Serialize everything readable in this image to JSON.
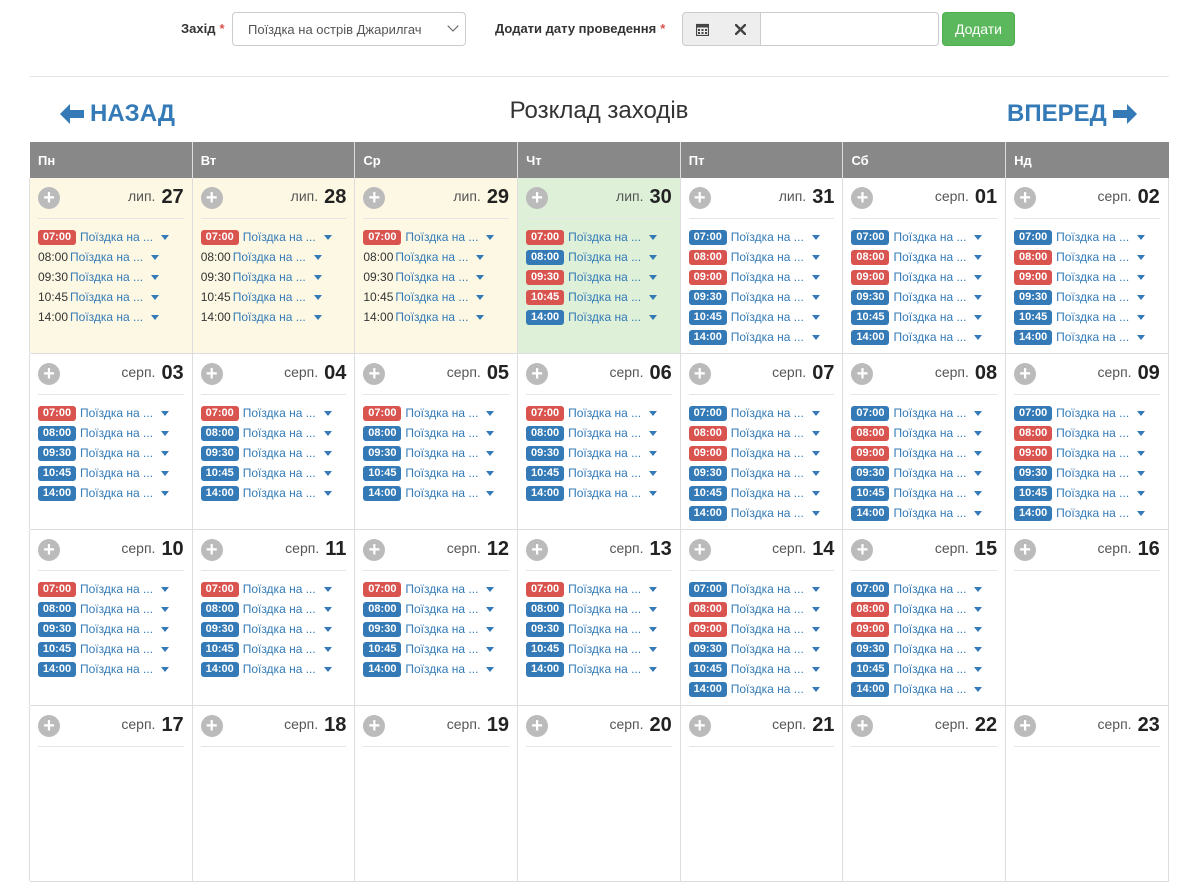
{
  "form": {
    "event_label": "Захід",
    "event_required": "*",
    "event_value": "Поїздка на острів Джарилгач",
    "date_label": "Додати дату проведення",
    "date_required": "*",
    "date_value": "",
    "add_label": "Додати"
  },
  "nav": {
    "back_label": "НАЗАД",
    "forward_label": "ВПЕРЕД",
    "back_icon": "arrow-left-icon",
    "forward_icon": "arrow-right-icon"
  },
  "schedule_title": "Розклад заходів",
  "colors": {
    "accent": "#337ab7",
    "past_bg": "#fcf8e3",
    "today_bg": "#dff0d8",
    "header_bg": "#888888",
    "red_badge": "#d9534f",
    "green_button": "#5cb85c"
  },
  "weekdays": [
    "Пн",
    "Вт",
    "Ср",
    "Чт",
    "Пт",
    "Сб",
    "Нд"
  ],
  "event_name": "Поїздка на ...",
  "weeks": [
    [
      {
        "month": "лип.",
        "day": "27",
        "state": "past",
        "events": [
          {
            "time": "07:00",
            "style": "red"
          },
          {
            "time": "08:00",
            "style": "plain"
          },
          {
            "time": "09:30",
            "style": "plain"
          },
          {
            "time": "10:45",
            "style": "plain"
          },
          {
            "time": "14:00",
            "style": "plain"
          }
        ]
      },
      {
        "month": "лип.",
        "day": "28",
        "state": "past",
        "events": [
          {
            "time": "07:00",
            "style": "red"
          },
          {
            "time": "08:00",
            "style": "plain"
          },
          {
            "time": "09:30",
            "style": "plain"
          },
          {
            "time": "10:45",
            "style": "plain"
          },
          {
            "time": "14:00",
            "style": "plain"
          }
        ]
      },
      {
        "month": "лип.",
        "day": "29",
        "state": "past",
        "events": [
          {
            "time": "07:00",
            "style": "red"
          },
          {
            "time": "08:00",
            "style": "plain"
          },
          {
            "time": "09:30",
            "style": "plain"
          },
          {
            "time": "10:45",
            "style": "plain"
          },
          {
            "time": "14:00",
            "style": "plain"
          }
        ]
      },
      {
        "month": "лип.",
        "day": "30",
        "state": "today",
        "events": [
          {
            "time": "07:00",
            "style": "red"
          },
          {
            "time": "08:00",
            "style": "blue"
          },
          {
            "time": "09:30",
            "style": "red"
          },
          {
            "time": "10:45",
            "style": "red"
          },
          {
            "time": "14:00",
            "style": "blue"
          }
        ]
      },
      {
        "month": "лип.",
        "day": "31",
        "state": "future",
        "events": [
          {
            "time": "07:00",
            "style": "blue"
          },
          {
            "time": "08:00",
            "style": "red"
          },
          {
            "time": "09:00",
            "style": "red"
          },
          {
            "time": "09:30",
            "style": "blue"
          },
          {
            "time": "10:45",
            "style": "blue"
          },
          {
            "time": "14:00",
            "style": "blue"
          }
        ]
      },
      {
        "month": "серп.",
        "day": "01",
        "state": "future",
        "events": [
          {
            "time": "07:00",
            "style": "blue"
          },
          {
            "time": "08:00",
            "style": "red"
          },
          {
            "time": "09:00",
            "style": "red"
          },
          {
            "time": "09:30",
            "style": "blue"
          },
          {
            "time": "10:45",
            "style": "blue"
          },
          {
            "time": "14:00",
            "style": "blue"
          }
        ]
      },
      {
        "month": "серп.",
        "day": "02",
        "state": "future",
        "events": [
          {
            "time": "07:00",
            "style": "blue"
          },
          {
            "time": "08:00",
            "style": "red"
          },
          {
            "time": "09:00",
            "style": "red"
          },
          {
            "time": "09:30",
            "style": "blue"
          },
          {
            "time": "10:45",
            "style": "blue"
          },
          {
            "time": "14:00",
            "style": "blue"
          }
        ]
      }
    ],
    [
      {
        "month": "серп.",
        "day": "03",
        "state": "future",
        "events": [
          {
            "time": "07:00",
            "style": "red"
          },
          {
            "time": "08:00",
            "style": "blue"
          },
          {
            "time": "09:30",
            "style": "blue"
          },
          {
            "time": "10:45",
            "style": "blue"
          },
          {
            "time": "14:00",
            "style": "blue"
          }
        ]
      },
      {
        "month": "серп.",
        "day": "04",
        "state": "future",
        "events": [
          {
            "time": "07:00",
            "style": "red"
          },
          {
            "time": "08:00",
            "style": "blue"
          },
          {
            "time": "09:30",
            "style": "blue"
          },
          {
            "time": "10:45",
            "style": "blue"
          },
          {
            "time": "14:00",
            "style": "blue"
          }
        ]
      },
      {
        "month": "серп.",
        "day": "05",
        "state": "future",
        "events": [
          {
            "time": "07:00",
            "style": "red"
          },
          {
            "time": "08:00",
            "style": "blue"
          },
          {
            "time": "09:30",
            "style": "blue"
          },
          {
            "time": "10:45",
            "style": "blue"
          },
          {
            "time": "14:00",
            "style": "blue"
          }
        ]
      },
      {
        "month": "серп.",
        "day": "06",
        "state": "future",
        "events": [
          {
            "time": "07:00",
            "style": "red"
          },
          {
            "time": "08:00",
            "style": "blue"
          },
          {
            "time": "09:30",
            "style": "blue"
          },
          {
            "time": "10:45",
            "style": "blue"
          },
          {
            "time": "14:00",
            "style": "blue"
          }
        ]
      },
      {
        "month": "серп.",
        "day": "07",
        "state": "future",
        "events": [
          {
            "time": "07:00",
            "style": "blue"
          },
          {
            "time": "08:00",
            "style": "red"
          },
          {
            "time": "09:00",
            "style": "red"
          },
          {
            "time": "09:30",
            "style": "blue"
          },
          {
            "time": "10:45",
            "style": "blue"
          },
          {
            "time": "14:00",
            "style": "blue"
          }
        ]
      },
      {
        "month": "серп.",
        "day": "08",
        "state": "future",
        "events": [
          {
            "time": "07:00",
            "style": "blue"
          },
          {
            "time": "08:00",
            "style": "red"
          },
          {
            "time": "09:00",
            "style": "red"
          },
          {
            "time": "09:30",
            "style": "blue"
          },
          {
            "time": "10:45",
            "style": "blue"
          },
          {
            "time": "14:00",
            "style": "blue"
          }
        ]
      },
      {
        "month": "серп.",
        "day": "09",
        "state": "future",
        "events": [
          {
            "time": "07:00",
            "style": "blue"
          },
          {
            "time": "08:00",
            "style": "red"
          },
          {
            "time": "09:00",
            "style": "red"
          },
          {
            "time": "09:30",
            "style": "blue"
          },
          {
            "time": "10:45",
            "style": "blue"
          },
          {
            "time": "14:00",
            "style": "blue"
          }
        ]
      }
    ],
    [
      {
        "month": "серп.",
        "day": "10",
        "state": "future",
        "events": [
          {
            "time": "07:00",
            "style": "red"
          },
          {
            "time": "08:00",
            "style": "blue"
          },
          {
            "time": "09:30",
            "style": "blue"
          },
          {
            "time": "10:45",
            "style": "blue"
          },
          {
            "time": "14:00",
            "style": "blue"
          }
        ]
      },
      {
        "month": "серп.",
        "day": "11",
        "state": "future",
        "events": [
          {
            "time": "07:00",
            "style": "red"
          },
          {
            "time": "08:00",
            "style": "blue"
          },
          {
            "time": "09:30",
            "style": "blue"
          },
          {
            "time": "10:45",
            "style": "blue"
          },
          {
            "time": "14:00",
            "style": "blue"
          }
        ]
      },
      {
        "month": "серп.",
        "day": "12",
        "state": "future",
        "events": [
          {
            "time": "07:00",
            "style": "red"
          },
          {
            "time": "08:00",
            "style": "blue"
          },
          {
            "time": "09:30",
            "style": "blue"
          },
          {
            "time": "10:45",
            "style": "blue"
          },
          {
            "time": "14:00",
            "style": "blue"
          }
        ]
      },
      {
        "month": "серп.",
        "day": "13",
        "state": "future",
        "events": [
          {
            "time": "07:00",
            "style": "red"
          },
          {
            "time": "08:00",
            "style": "blue"
          },
          {
            "time": "09:30",
            "style": "blue"
          },
          {
            "time": "10:45",
            "style": "blue"
          },
          {
            "time": "14:00",
            "style": "blue"
          }
        ]
      },
      {
        "month": "серп.",
        "day": "14",
        "state": "future",
        "events": [
          {
            "time": "07:00",
            "style": "blue"
          },
          {
            "time": "08:00",
            "style": "red"
          },
          {
            "time": "09:00",
            "style": "red"
          },
          {
            "time": "09:30",
            "style": "blue"
          },
          {
            "time": "10:45",
            "style": "blue"
          },
          {
            "time": "14:00",
            "style": "blue"
          }
        ]
      },
      {
        "month": "серп.",
        "day": "15",
        "state": "future",
        "events": [
          {
            "time": "07:00",
            "style": "blue"
          },
          {
            "time": "08:00",
            "style": "red"
          },
          {
            "time": "09:00",
            "style": "red"
          },
          {
            "time": "09:30",
            "style": "blue"
          },
          {
            "time": "10:45",
            "style": "blue"
          },
          {
            "time": "14:00",
            "style": "blue"
          }
        ]
      },
      {
        "month": "серп.",
        "day": "16",
        "state": "future",
        "events": []
      }
    ],
    [
      {
        "month": "серп.",
        "day": "17",
        "state": "future",
        "events": []
      },
      {
        "month": "серп.",
        "day": "18",
        "state": "future",
        "events": []
      },
      {
        "month": "серп.",
        "day": "19",
        "state": "future",
        "events": []
      },
      {
        "month": "серп.",
        "day": "20",
        "state": "future",
        "events": []
      },
      {
        "month": "серп.",
        "day": "21",
        "state": "future",
        "events": []
      },
      {
        "month": "серп.",
        "day": "22",
        "state": "future",
        "events": []
      },
      {
        "month": "серп.",
        "day": "23",
        "state": "future",
        "events": []
      }
    ]
  ]
}
